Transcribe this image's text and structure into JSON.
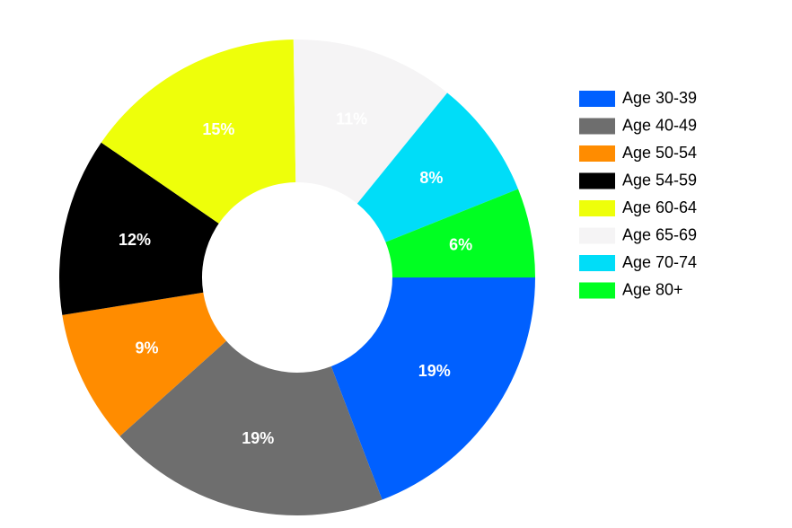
{
  "chart_data": {
    "type": "donut",
    "categories": [
      "Age 30-39",
      "Age 40-49",
      "Age 50-54",
      "Age 54-59",
      "Age 60-64",
      "Age 65-69",
      "Age 70-74",
      "Age 80+"
    ],
    "values": [
      19,
      19,
      9,
      12,
      15,
      11,
      8,
      6
    ],
    "value_labels": [
      "19%",
      "19%",
      "9%",
      "12%",
      "15%",
      "11%",
      "8%",
      "6%"
    ],
    "colors": [
      "#0060ff",
      "#6e6e6e",
      "#ff8c00",
      "#000000",
      "#eeff0a",
      "#f5f4f5",
      "#00ddf8",
      "#00ff22"
    ],
    "legend": "right"
  }
}
